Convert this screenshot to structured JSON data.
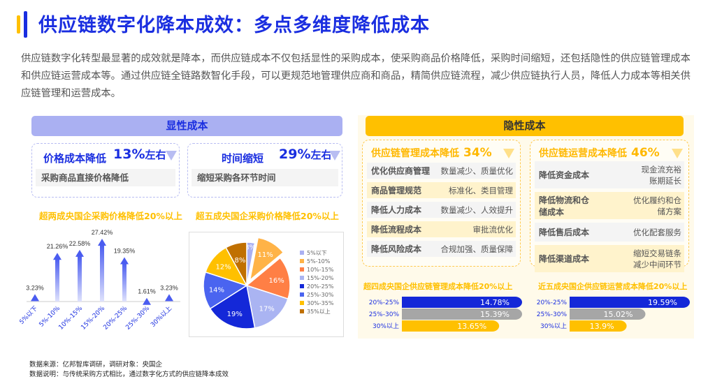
{
  "title": "供应链数字化降本成效：多点多维度降低成本",
  "intro": "供应链数字化转型最显著的成效就是降本，而供应链成本不仅包括显性的采购成本，使采购商品价格降低，采购时间缩短，还包括隐性的供应链管理成本和供应链运营成本等。通过供应链全链路数智化手段，可以更规范地管理供应商和商品，精简供应链流程，减少供应链执行人员，降低人力成本等相关供应链管理和运营成本。",
  "explicit": {
    "header": "显性成本",
    "cards": [
      {
        "title": "价格成本降低",
        "pct": "13%",
        "suffix": "左右",
        "desc": "采购商品直接价格降低"
      },
      {
        "title": "时间缩短",
        "pct": "29%",
        "suffix": "左右",
        "desc": "缩短采购各环节时间"
      }
    ]
  },
  "implicit": {
    "header": "隐性成本",
    "boxes": [
      {
        "title": "供应链管理成本降低",
        "pct": "34%",
        "rows": [
          {
            "k": "优化供应商管理",
            "v": "数量减少、质量优化"
          },
          {
            "k": "商品管理规范",
            "v": "标准化、类目管理"
          },
          {
            "k": "降低人力成本",
            "v": "数量减少、人效提升"
          },
          {
            "k": "降低流程成本",
            "v": "审批流优化"
          },
          {
            "k": "降低风险成本",
            "v": "合规加强、质量保障"
          }
        ]
      },
      {
        "title": "供应链运营成本降低",
        "pct": "46%",
        "rows": [
          {
            "k": "降低资金成本",
            "v": "现金流充裕\n账期延长"
          },
          {
            "k": "降低物流和仓储成本",
            "v": "优化履约和仓储方案"
          },
          {
            "k": "降低售后成本",
            "v": "优化配套服务"
          },
          {
            "k": "降低渠道成本",
            "v": "缩短交易链条\n减少中间环节"
          }
        ]
      }
    ]
  },
  "chart_data": [
    {
      "type": "bar",
      "title": "超两成央国企采购价格降低20%以上",
      "categories": [
        "5%以下",
        "5%-10%",
        "10%-15%",
        "15%-20%",
        "20%-25%",
        "25%-30%",
        "30%以上"
      ],
      "values": [
        3.23,
        21.26,
        22.58,
        27.42,
        19.35,
        1.61,
        3.23
      ],
      "labels": [
        "3.23%",
        "21.26%",
        "22.58%",
        "27.42%",
        "19.35%",
        "1.61%",
        "3.23%"
      ],
      "color": "#4a5cf0"
    },
    {
      "type": "pie",
      "title": "超五成央国企采购价格降低20%以上",
      "categories": [
        "5%以下",
        "5%-10%",
        "10%-15%",
        "15%-20%",
        "20%-25%",
        "25%-30%",
        "30%-35%",
        "35%以上"
      ],
      "values": [
        3,
        11,
        16,
        17,
        19,
        14,
        12,
        8
      ],
      "labels": [
        "3%",
        "11%",
        "16%",
        "17%",
        "19%",
        "14%",
        "12%",
        "8%"
      ],
      "colors": [
        "#aab0f2",
        "#ffb347",
        "#ff7f45",
        "#aab4f2",
        "#1428d8",
        "#4a64f0",
        "#ffc000",
        "#c07000"
      ],
      "legend": "right",
      "exploded": "5%-10%"
    },
    {
      "type": "bar",
      "orientation": "horizontal",
      "title": "超四成央国企供应链管理成本降低20%以上",
      "categories": [
        "20%-25%",
        "25%-30%",
        "30%以上"
      ],
      "values": [
        14.78,
        15.39,
        13.65
      ],
      "labels": [
        "14.78%",
        "15.39%",
        "13.65%"
      ],
      "colors": [
        "#1428d8",
        "#a6a6a6",
        "#ffc000"
      ]
    },
    {
      "type": "bar",
      "orientation": "horizontal",
      "title": "近五成央国企供应链运营成本降低20%以上",
      "categories": [
        "20%-25%",
        "25%-30%",
        "30%以上"
      ],
      "values": [
        19.59,
        15.02,
        13.9
      ],
      "labels": [
        "19.59%",
        "15.02%",
        "13.9%"
      ],
      "colors": [
        "#1428d8",
        "#a6a6a6",
        "#ffc000"
      ]
    }
  ],
  "footer": {
    "source": "数据来源：亿邦智库调研，调研对象：央国企",
    "note": "数据说明：与传统采购方式相比，通过数字化方式的供应链降本成效"
  }
}
